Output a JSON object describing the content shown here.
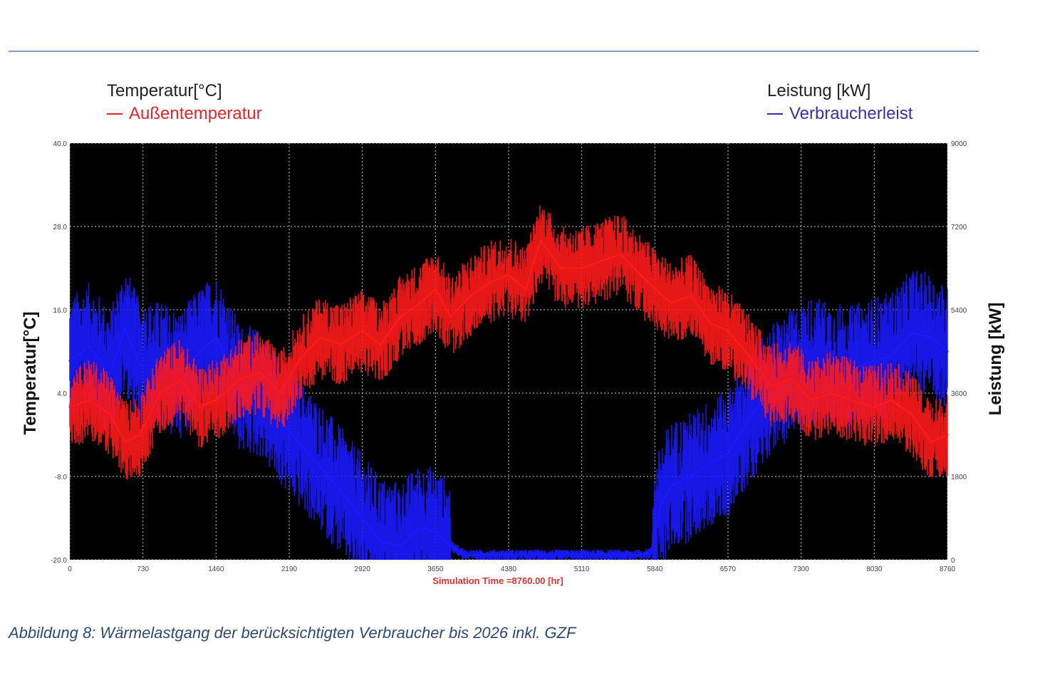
{
  "legend_left": {
    "axis_title": "Temperatur[°C]",
    "series_label": "Außentemperatur",
    "color": "#e8242a"
  },
  "legend_right": {
    "axis_title": "Leistung [kW]",
    "series_label": "Verbraucherleist",
    "color": "#3730a8"
  },
  "caption": "Abbildung 8: Wärmelastgang der berücksichtigten Verbraucher bis 2026 inkl. GZF",
  "chart_data": {
    "type": "line",
    "xlabel": "Simulation Time =8760.00 [hr]",
    "ylabel": "Temperatur[°C]",
    "y2label": "Leistung [kW]",
    "xlim": [
      0,
      8760
    ],
    "ylim": [
      -20,
      40
    ],
    "y2lim": [
      0,
      9000
    ],
    "x_ticks": [
      "0",
      "730",
      "1460",
      "2190",
      "2920",
      "3650",
      "4380",
      "5110",
      "5840",
      "6570",
      "7300",
      "8030",
      "8760"
    ],
    "y_ticks": [
      "-20.0",
      "-8.0",
      "4.0",
      "16.0",
      "28.0",
      "40.0"
    ],
    "y2_ticks": [
      "0",
      "1800",
      "3600",
      "5400",
      "7200",
      "9000"
    ],
    "grid": true,
    "background": "#000000",
    "series": [
      {
        "name": "Außentemperatur",
        "axis": "left",
        "color": "#ff1a1a",
        "x": [
          0,
          200,
          400,
          550,
          700,
          900,
          1100,
          1300,
          1460,
          1700,
          1900,
          2100,
          2300,
          2500,
          2700,
          2920,
          3100,
          3300,
          3500,
          3650,
          3800,
          4000,
          4200,
          4380,
          4550,
          4700,
          4900,
          5110,
          5300,
          5500,
          5700,
          5840,
          6000,
          6200,
          6400,
          6570,
          6800,
          7000,
          7200,
          7400,
          7600,
          7800,
          8030,
          8200,
          8400,
          8600,
          8760
        ],
        "y": [
          2,
          3,
          1,
          -3,
          -2,
          4,
          6,
          2,
          3,
          6,
          7,
          4,
          9,
          12,
          11,
          13,
          11,
          15,
          17,
          19,
          15,
          18,
          20,
          21,
          19,
          26,
          22,
          22,
          23,
          24,
          21,
          19,
          17,
          18,
          14,
          13,
          9,
          5,
          6,
          3,
          4,
          3,
          2,
          3,
          1,
          -3,
          -2
        ]
      },
      {
        "name": "Verbraucherleist",
        "axis": "right",
        "color": "#1a1aff",
        "x": [
          0,
          200,
          400,
          550,
          700,
          900,
          1100,
          1300,
          1460,
          1700,
          1900,
          2100,
          2300,
          2500,
          2700,
          2920,
          3100,
          3300,
          3500,
          3650,
          3800,
          3950,
          4200,
          4380,
          4550,
          4700,
          4900,
          5110,
          5300,
          5500,
          5700,
          5800,
          5900,
          6000,
          6200,
          6400,
          6570,
          6800,
          7000,
          7200,
          7400,
          7600,
          7800,
          8030,
          8200,
          8400,
          8600,
          8760
        ],
        "y": [
          4300,
          4600,
          4000,
          5000,
          4200,
          4200,
          4000,
          4500,
          4800,
          3700,
          3600,
          3000,
          2500,
          2000,
          1500,
          900,
          400,
          300,
          700,
          600,
          300,
          100,
          100,
          100,
          100,
          100,
          100,
          100,
          100,
          100,
          100,
          150,
          1200,
          1600,
          1800,
          2100,
          2300,
          3100,
          3700,
          4000,
          4300,
          4200,
          4100,
          4300,
          4400,
          4900,
          4800,
          4500
        ]
      }
    ]
  }
}
